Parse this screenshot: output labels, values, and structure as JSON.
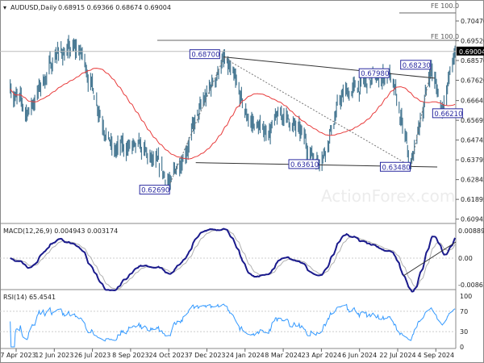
{
  "header": {
    "symbol": "AUDUSD,Daily",
    "ohlc": "0.68915 0.69366 0.68674 0.69004"
  },
  "watermark": "ActionForex.com",
  "colors": {
    "bars": "#4a7a94",
    "ma": "#e83c3c",
    "macd": "#1a1a8c",
    "signal": "#b0b0b0",
    "rsi": "#3399ff",
    "label_border": "#2a2aa0"
  },
  "chart_data": [
    {
      "type": "line",
      "title": "AUDUSD,Daily",
      "ylim": [
        0.60945,
        0.7047
      ],
      "y_ticks": [
        "0.70470",
        "0.69520",
        "0.68570",
        "0.67620",
        "0.66645",
        "0.65695",
        "0.64745",
        "0.63795",
        "0.62845",
        "0.61895",
        "0.60945"
      ],
      "current_price": "0.69004",
      "x_ticks": [
        "27 Apr 2023",
        "12 Jun 2023",
        "26 Jul 2023",
        "8 Sep 2023",
        "24 Oct 2023",
        "7 Dec 2023",
        "24 Jan 2024",
        "8 Mar 2024",
        "23 Apr 2024",
        "6 Jun 2024",
        "22 Jul 2024",
        "4 Sep 2024"
      ],
      "price_path": [
        {
          "date": "2023-04-20",
          "price": 0.672
        },
        {
          "date": "2023-05-10",
          "price": 0.66
        },
        {
          "date": "2023-06-15",
          "price": 0.69
        },
        {
          "date": "2023-07-13",
          "price": 0.69
        },
        {
          "date": "2023-08-20",
          "price": 0.642
        },
        {
          "date": "2023-09-15",
          "price": 0.645
        },
        {
          "date": "2023-10-26",
          "price": 0.6269
        },
        {
          "date": "2023-12-28",
          "price": 0.687
        },
        {
          "date": "2024-01-25",
          "price": 0.658
        },
        {
          "date": "2024-02-15",
          "price": 0.651
        },
        {
          "date": "2024-03-10",
          "price": 0.66
        },
        {
          "date": "2024-04-19",
          "price": 0.6361
        },
        {
          "date": "2024-05-16",
          "price": 0.669
        },
        {
          "date": "2024-07-11",
          "price": 0.6798
        },
        {
          "date": "2024-08-05",
          "price": 0.6348
        },
        {
          "date": "2024-08-29",
          "price": 0.6823
        },
        {
          "date": "2024-09-11",
          "price": 0.6621
        },
        {
          "date": "2024-09-26",
          "price": 0.69
        }
      ],
      "pivot_labels": [
        {
          "text": "0.62690",
          "date": "2023-10-26",
          "price": 0.6269
        },
        {
          "text": "0.68700",
          "date": "2023-12-28",
          "price": 0.687
        },
        {
          "text": "0.63610",
          "date": "2024-04-19",
          "price": 0.6361
        },
        {
          "text": "0.67980",
          "date": "2024-07-11",
          "price": 0.6798
        },
        {
          "text": "0.63480",
          "date": "2024-08-05",
          "price": 0.6348
        },
        {
          "text": "0.68230",
          "date": "2024-08-29",
          "price": 0.6823
        },
        {
          "text": "0.66210",
          "date": "2024-09-11",
          "price": 0.6621
        }
      ],
      "fibo_labels": [
        {
          "text": "FE 100.0",
          "price": 0.6957
        },
        {
          "text": "FE 100.0",
          "price": 0.7078
        }
      ]
    },
    {
      "type": "line",
      "title": "MACD(12,26,9) 0.004943 0.003174",
      "ylim": [
        -0.008612,
        0.008896
      ],
      "y_ticks": [
        "0.008896",
        "0.00",
        "-0.008612"
      ]
    },
    {
      "type": "line",
      "title": "RSI(14) 65.4541",
      "ylim": [
        0,
        100
      ],
      "y_ticks": [
        "100",
        "70",
        "30",
        "0"
      ]
    }
  ]
}
